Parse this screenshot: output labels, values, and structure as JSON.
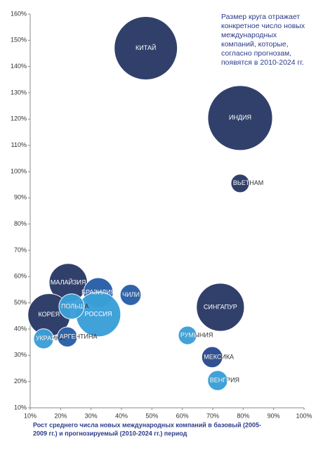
{
  "chart_data": {
    "type": "bubble",
    "annotation": [
      "Размер круга отражает",
      "конкретное число новых",
      "международных",
      "компаний, которые,",
      "согласно прогнозам,",
      "появятся в 2010-2024 гг."
    ],
    "xlabel": [
      "Рост среднего числа новых международных компаний в базовый (2005-",
      "2009 гг.) и прогнозируемый (2010-2024 гг.) период"
    ],
    "xlim": [
      10,
      100
    ],
    "xticks": [
      {
        "value": 10,
        "label": "10%"
      },
      {
        "value": 20,
        "label": "20%"
      },
      {
        "value": 30,
        "label": "30%"
      },
      {
        "value": 40,
        "label": "40%"
      },
      {
        "value": 50,
        "label": "50%"
      },
      {
        "value": 60,
        "label": "60%"
      },
      {
        "value": 70,
        "label": "70%"
      },
      {
        "value": 80,
        "label": "80%"
      },
      {
        "value": 90,
        "label": "90%"
      },
      {
        "value": 100,
        "label": "100%"
      }
    ],
    "ylim": [
      10,
      160
    ],
    "yticks": [
      {
        "value": 10,
        "label": "10%"
      },
      {
        "value": 20,
        "label": "20%"
      },
      {
        "value": 30,
        "label": "30%"
      },
      {
        "value": 40,
        "label": "40%"
      },
      {
        "value": 50,
        "label": "50%"
      },
      {
        "value": 60,
        "label": "60%"
      },
      {
        "value": 70,
        "label": "70%"
      },
      {
        "value": 80,
        "label": "80%"
      },
      {
        "value": 90,
        "label": "90%"
      },
      {
        "value": 100,
        "label": "100%"
      },
      {
        "value": 110,
        "label": "110%"
      },
      {
        "value": 120,
        "label": "120%"
      },
      {
        "value": 130,
        "label": "130%"
      },
      {
        "value": 140,
        "label": "140%"
      },
      {
        "value": 150,
        "label": "150%"
      },
      {
        "value": 160,
        "label": "160%"
      }
    ],
    "grid": false,
    "points": [
      {
        "name": "КИТАЙ",
        "x": 48,
        "y": 147,
        "size": 200,
        "color": "#2b3a67"
      },
      {
        "name": "ИНДИЯ",
        "x": 79,
        "y": 120.4,
        "size": 210,
        "color": "#2b3a67"
      },
      {
        "name": "ВЬЕТНАМ",
        "x": 79,
        "y": 95.5,
        "size": 17,
        "color": "#2b3a67"
      },
      {
        "name": "МАЛАЙЗИЯ",
        "x": 22.5,
        "y": 57.7,
        "size": 73,
        "color": "#2b3a67"
      },
      {
        "name": "КОРЕЯ",
        "x": 16.2,
        "y": 45.4,
        "size": 90,
        "color": "#2b3a67"
      },
      {
        "name": "БРАЗИЛИЯ",
        "x": 32.4,
        "y": 53.9,
        "size": 44,
        "color": "#2a5fa8"
      },
      {
        "name": "ЧИЛИ",
        "x": 43,
        "y": 53,
        "size": 22,
        "color": "#2a5fa8"
      },
      {
        "name": "РОССИЯ",
        "x": 32.4,
        "y": 45.6,
        "size": 100,
        "color": "#3a9fd8"
      },
      {
        "name": "ПОЛЬША",
        "x": 23.6,
        "y": 48.6,
        "size": 32,
        "color": "#3a9fd8"
      },
      {
        "name": "УКРАИНА",
        "x": 14.4,
        "y": 36.3,
        "size": 20,
        "color": "#3a9fd8"
      },
      {
        "name": "АРГЕНТИНА",
        "x": 22.2,
        "y": 37,
        "size": 20,
        "color": "#2a5fa8"
      },
      {
        "name": "СИНГАПУР",
        "x": 72.5,
        "y": 48.3,
        "size": 115,
        "color": "#2b3a67"
      },
      {
        "name": "РУМЫНИЯ",
        "x": 61.7,
        "y": 37.6,
        "size": 17,
        "color": "#3a9fd8"
      },
      {
        "name": "МЕКСИКА",
        "x": 69.8,
        "y": 29.3,
        "size": 22,
        "color": "#2a4b8e"
      },
      {
        "name": "ВЕНГРИЯ",
        "x": 71.6,
        "y": 20.4,
        "size": 20,
        "color": "#3a9fd8"
      }
    ]
  }
}
